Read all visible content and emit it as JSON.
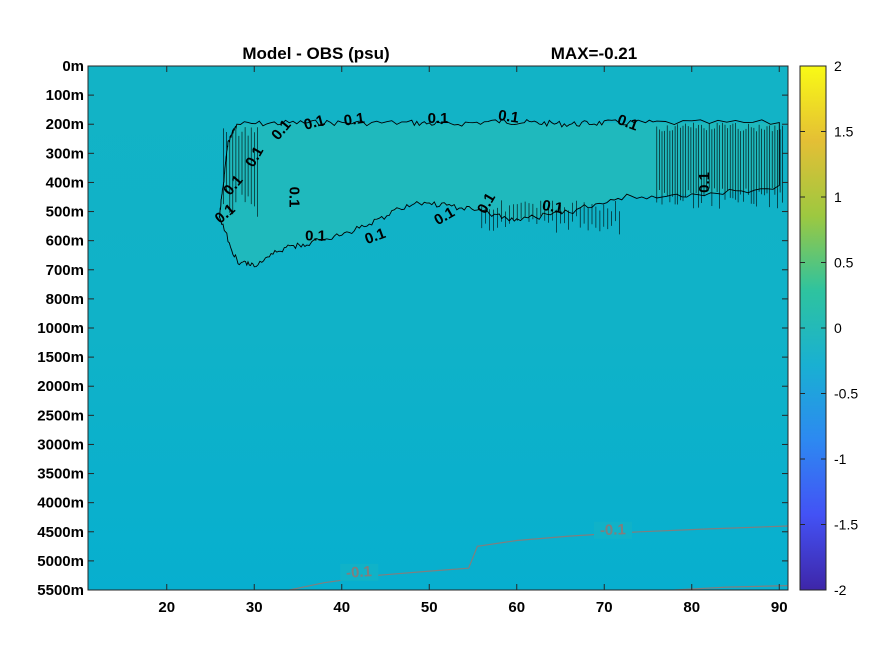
{
  "chart_data": {
    "type": "heatmap",
    "title": "Model - OBS (psu)",
    "max_label": "MAX=-0.21",
    "xlabel": "",
    "ylabel": "",
    "x_ticks": [
      20,
      30,
      40,
      50,
      60,
      70,
      80,
      90
    ],
    "xlim": [
      11,
      91
    ],
    "y_ticks": [
      "0m",
      "100m",
      "200m",
      "300m",
      "400m",
      "500m",
      "600m",
      "700m",
      "800m",
      "1000m",
      "1500m",
      "2000m",
      "2500m",
      "3000m",
      "3500m",
      "4000m",
      "4500m",
      "5000m",
      "5500m"
    ],
    "colorbar": {
      "min": -2,
      "max": 2,
      "ticks": [
        "2",
        "1.5",
        "1",
        "0.5",
        "0",
        "-0.5",
        "-1",
        "-1.5",
        "-2"
      ],
      "colormap": "parula",
      "colors": [
        "#3e26a8",
        "#4352f5",
        "#2d89f1",
        "#19b0d2",
        "#2ec39f",
        "#9dc840",
        "#e4bf35",
        "#f9fa15"
      ]
    },
    "field_colors": {
      "background": "#11b2c8",
      "anomaly_region": "#1fb9bd",
      "deep": "#07b0cf"
    },
    "contours": [
      {
        "level": 0.1,
        "color": "#000000",
        "labels": [
          "0.1",
          "0.1",
          "0.1",
          "0.1",
          "0.1",
          "0.1",
          "0.1",
          "0.1",
          "0.1",
          "0.1",
          "0.1",
          "0.1",
          "0.1",
          "0.1",
          "0.1",
          "0.1"
        ],
        "path": [
          [
            28,
            2.0
          ],
          [
            34,
            1.95
          ],
          [
            40,
            1.95
          ],
          [
            48,
            1.95
          ],
          [
            52,
            2.0
          ],
          [
            58,
            1.9
          ],
          [
            62,
            1.95
          ],
          [
            66,
            2.0
          ],
          [
            70,
            1.95
          ],
          [
            76,
            1.95
          ],
          [
            90,
            1.95
          ],
          [
            90,
            4.2
          ],
          [
            80,
            4.4
          ],
          [
            72,
            4.5
          ],
          [
            66,
            5.0
          ],
          [
            60,
            5.3
          ],
          [
            56,
            5.0
          ],
          [
            52,
            4.8
          ],
          [
            48,
            4.7
          ],
          [
            44,
            5.3
          ],
          [
            40,
            5.8
          ],
          [
            36,
            6.1
          ],
          [
            33,
            6.3
          ],
          [
            30,
            6.9
          ],
          [
            28,
            6.7
          ],
          [
            26,
            5.2
          ],
          [
            26.5,
            4.0
          ],
          [
            27,
            2.6
          ],
          [
            28,
            2.0
          ]
        ]
      },
      {
        "level": -0.1,
        "color": "#7f7f7f",
        "labels": [
          "-0.1",
          "-0.1"
        ],
        "paths": [
          [
            [
              34,
              18.0
            ],
            [
              38,
              17.75
            ],
            [
              44,
              17.5
            ],
            [
              50,
              17.35
            ],
            [
              54.5,
              17.25
            ],
            [
              55.5,
              16.5
            ],
            [
              60,
              16.3
            ],
            [
              66,
              16.15
            ],
            [
              74,
              16.0
            ],
            [
              82,
              15.9
            ],
            [
              91,
              15.8
            ]
          ],
          [
            [
              78,
              18.0
            ],
            [
              84,
              17.9
            ],
            [
              91,
              17.85
            ]
          ]
        ]
      }
    ]
  }
}
